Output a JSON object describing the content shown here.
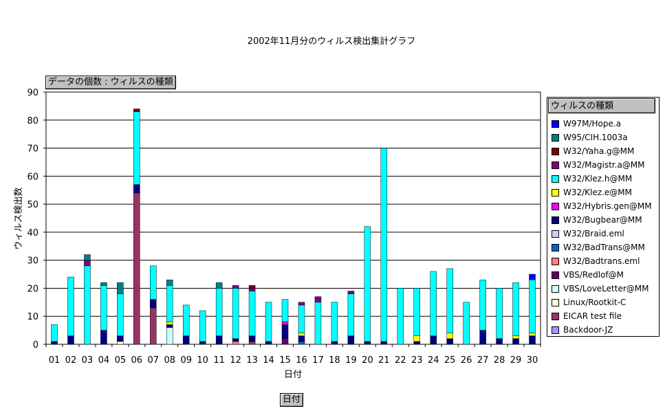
{
  "chart_data": {
    "type": "bar",
    "stacked": true,
    "title": "2002年11月分のウィルス検出集計グラフ",
    "xlabel": "日付",
    "ylabel": "ウィルス検出数",
    "ylim": [
      0,
      90
    ],
    "yticks": [
      0,
      10,
      20,
      30,
      40,
      50,
      60,
      70,
      80,
      90
    ],
    "grid": true,
    "legend_title": "ウィルスの種類",
    "legend_position": "right",
    "categories": [
      "01",
      "02",
      "03",
      "04",
      "05",
      "06",
      "07",
      "08",
      "09",
      "10",
      "11",
      "12",
      "13",
      "14",
      "15",
      "16",
      "17",
      "18",
      "19",
      "20",
      "21",
      "22",
      "23",
      "24",
      "25",
      "26",
      "27",
      "28",
      "29",
      "30"
    ],
    "series": [
      {
        "name": "Backdoor-JZ",
        "color": "#9999ff",
        "values": [
          0,
          0,
          0,
          0,
          0,
          0,
          0,
          0,
          0,
          0,
          0,
          0,
          0,
          0,
          0,
          0,
          0,
          0,
          0,
          0,
          0,
          0,
          0,
          0,
          0,
          0,
          0,
          0,
          0,
          0
        ]
      },
      {
        "name": "EICAR test file",
        "color": "#993366",
        "values": [
          0,
          0,
          0,
          0,
          0,
          54,
          13,
          0,
          0,
          0,
          0,
          0,
          1,
          0,
          0,
          0,
          0,
          0,
          0,
          0,
          0,
          0,
          0,
          0,
          0,
          0,
          0,
          0,
          0,
          0
        ]
      },
      {
        "name": "Linux/Rootkit-C",
        "color": "#ffffcc",
        "values": [
          0,
          0,
          0,
          0,
          1,
          0,
          0,
          0,
          0,
          0,
          0,
          0,
          0,
          0,
          0,
          0,
          0,
          0,
          0,
          0,
          0,
          0,
          0,
          0,
          0,
          0,
          0,
          0,
          0,
          0
        ]
      },
      {
        "name": "VBS/LoveLetter@MM",
        "color": "#ccffff",
        "values": [
          0,
          0,
          0,
          0,
          0,
          0,
          0,
          6,
          0,
          0,
          0,
          0,
          0,
          0,
          0,
          0,
          0,
          0,
          0,
          0,
          0,
          0,
          0,
          0,
          0,
          0,
          0,
          0,
          0,
          0
        ]
      },
      {
        "name": "VBS/Redlof@M",
        "color": "#660066",
        "values": [
          0,
          0,
          0,
          0,
          0,
          0,
          0,
          0,
          0,
          0,
          0,
          0,
          0,
          0,
          2,
          0,
          0,
          0,
          0,
          0,
          0,
          0,
          0,
          0,
          0,
          0,
          0,
          0,
          0,
          0
        ]
      },
      {
        "name": "W32/Badtrans.eml",
        "color": "#ff8080",
        "values": [
          0,
          0,
          0,
          0,
          0,
          0,
          0,
          0,
          0,
          0,
          0,
          1,
          0,
          0,
          0,
          0,
          0,
          0,
          0,
          0,
          0,
          0,
          0,
          0,
          0,
          0,
          0,
          0,
          0,
          0
        ]
      },
      {
        "name": "W32/BadTrans@MM",
        "color": "#0066cc",
        "values": [
          0,
          0,
          0,
          0,
          0,
          0,
          0,
          0,
          0,
          0,
          0,
          0,
          0,
          0,
          0,
          1,
          0,
          0,
          0,
          0,
          0,
          0,
          0,
          0,
          0,
          0,
          0,
          0,
          0,
          0
        ]
      },
      {
        "name": "W32/Braid.eml",
        "color": "#ccccff",
        "values": [
          0,
          0,
          0,
          0,
          0,
          0,
          0,
          0,
          0,
          0,
          0,
          0,
          0,
          0,
          0,
          0,
          0,
          0,
          0,
          0,
          0,
          0,
          0,
          0,
          0,
          0,
          0,
          0,
          0,
          0
        ]
      },
      {
        "name": "W32/Bugbear@MM",
        "color": "#000080",
        "values": [
          1,
          3,
          0,
          5,
          2,
          3,
          3,
          1,
          3,
          1,
          3,
          1,
          2,
          1,
          5,
          2,
          0,
          1,
          3,
          1,
          1,
          0,
          1,
          3,
          2,
          0,
          5,
          2,
          2,
          3
        ]
      },
      {
        "name": "W32/Hybris.gen@MM",
        "color": "#ff00ff",
        "values": [
          0,
          0,
          0,
          0,
          0,
          0,
          0,
          0,
          0,
          0,
          0,
          0,
          0,
          0,
          1,
          0,
          0,
          0,
          0,
          0,
          0,
          0,
          0,
          0,
          0,
          0,
          0,
          0,
          0,
          0
        ]
      },
      {
        "name": "W32/Klez.e@MM",
        "color": "#ffff00",
        "values": [
          0,
          0,
          0,
          0,
          0,
          0,
          0,
          1,
          0,
          0,
          0,
          0,
          0,
          0,
          0,
          1,
          0,
          0,
          0,
          0,
          0,
          0,
          2,
          0,
          2,
          0,
          0,
          0,
          1,
          1
        ]
      },
      {
        "name": "W32/Klez.h@MM",
        "color": "#00ffff",
        "values": [
          6,
          21,
          28,
          16,
          15,
          26,
          12,
          13,
          11,
          11,
          17,
          18,
          16,
          14,
          8,
          10,
          15,
          14,
          15,
          41,
          69,
          20,
          17,
          23,
          23,
          15,
          18,
          18,
          19,
          19
        ]
      },
      {
        "name": "W32/Magistr.a@MM",
        "color": "#800080",
        "values": [
          0,
          0,
          2,
          0,
          0,
          0,
          0,
          0,
          0,
          0,
          0,
          1,
          1,
          0,
          0,
          1,
          2,
          0,
          1,
          0,
          0,
          0,
          0,
          0,
          0,
          0,
          0,
          0,
          0,
          0
        ]
      },
      {
        "name": "W32/Yaha.g@MM",
        "color": "#800000",
        "values": [
          0,
          0,
          0,
          0,
          0,
          1,
          0,
          0,
          0,
          0,
          0,
          0,
          1,
          0,
          0,
          0,
          0,
          0,
          0,
          0,
          0,
          0,
          0,
          0,
          0,
          0,
          0,
          0,
          0,
          0
        ]
      },
      {
        "name": "W95/CIH.1003a",
        "color": "#008080",
        "values": [
          0,
          0,
          2,
          1,
          4,
          0,
          0,
          2,
          0,
          0,
          2,
          0,
          0,
          0,
          0,
          0,
          0,
          0,
          0,
          0,
          0,
          0,
          0,
          0,
          0,
          0,
          0,
          0,
          0,
          0
        ]
      },
      {
        "name": "W97M/Hope.a",
        "color": "#0000ff",
        "values": [
          0,
          0,
          0,
          0,
          0,
          0,
          0,
          0,
          0,
          0,
          0,
          0,
          0,
          0,
          0,
          0,
          0,
          0,
          0,
          0,
          0,
          0,
          0,
          0,
          0,
          0,
          0,
          0,
          0,
          2
        ]
      }
    ]
  },
  "field_button_label": "データの個数 : ウィルスの種類",
  "axis_field_button_label": "日付"
}
